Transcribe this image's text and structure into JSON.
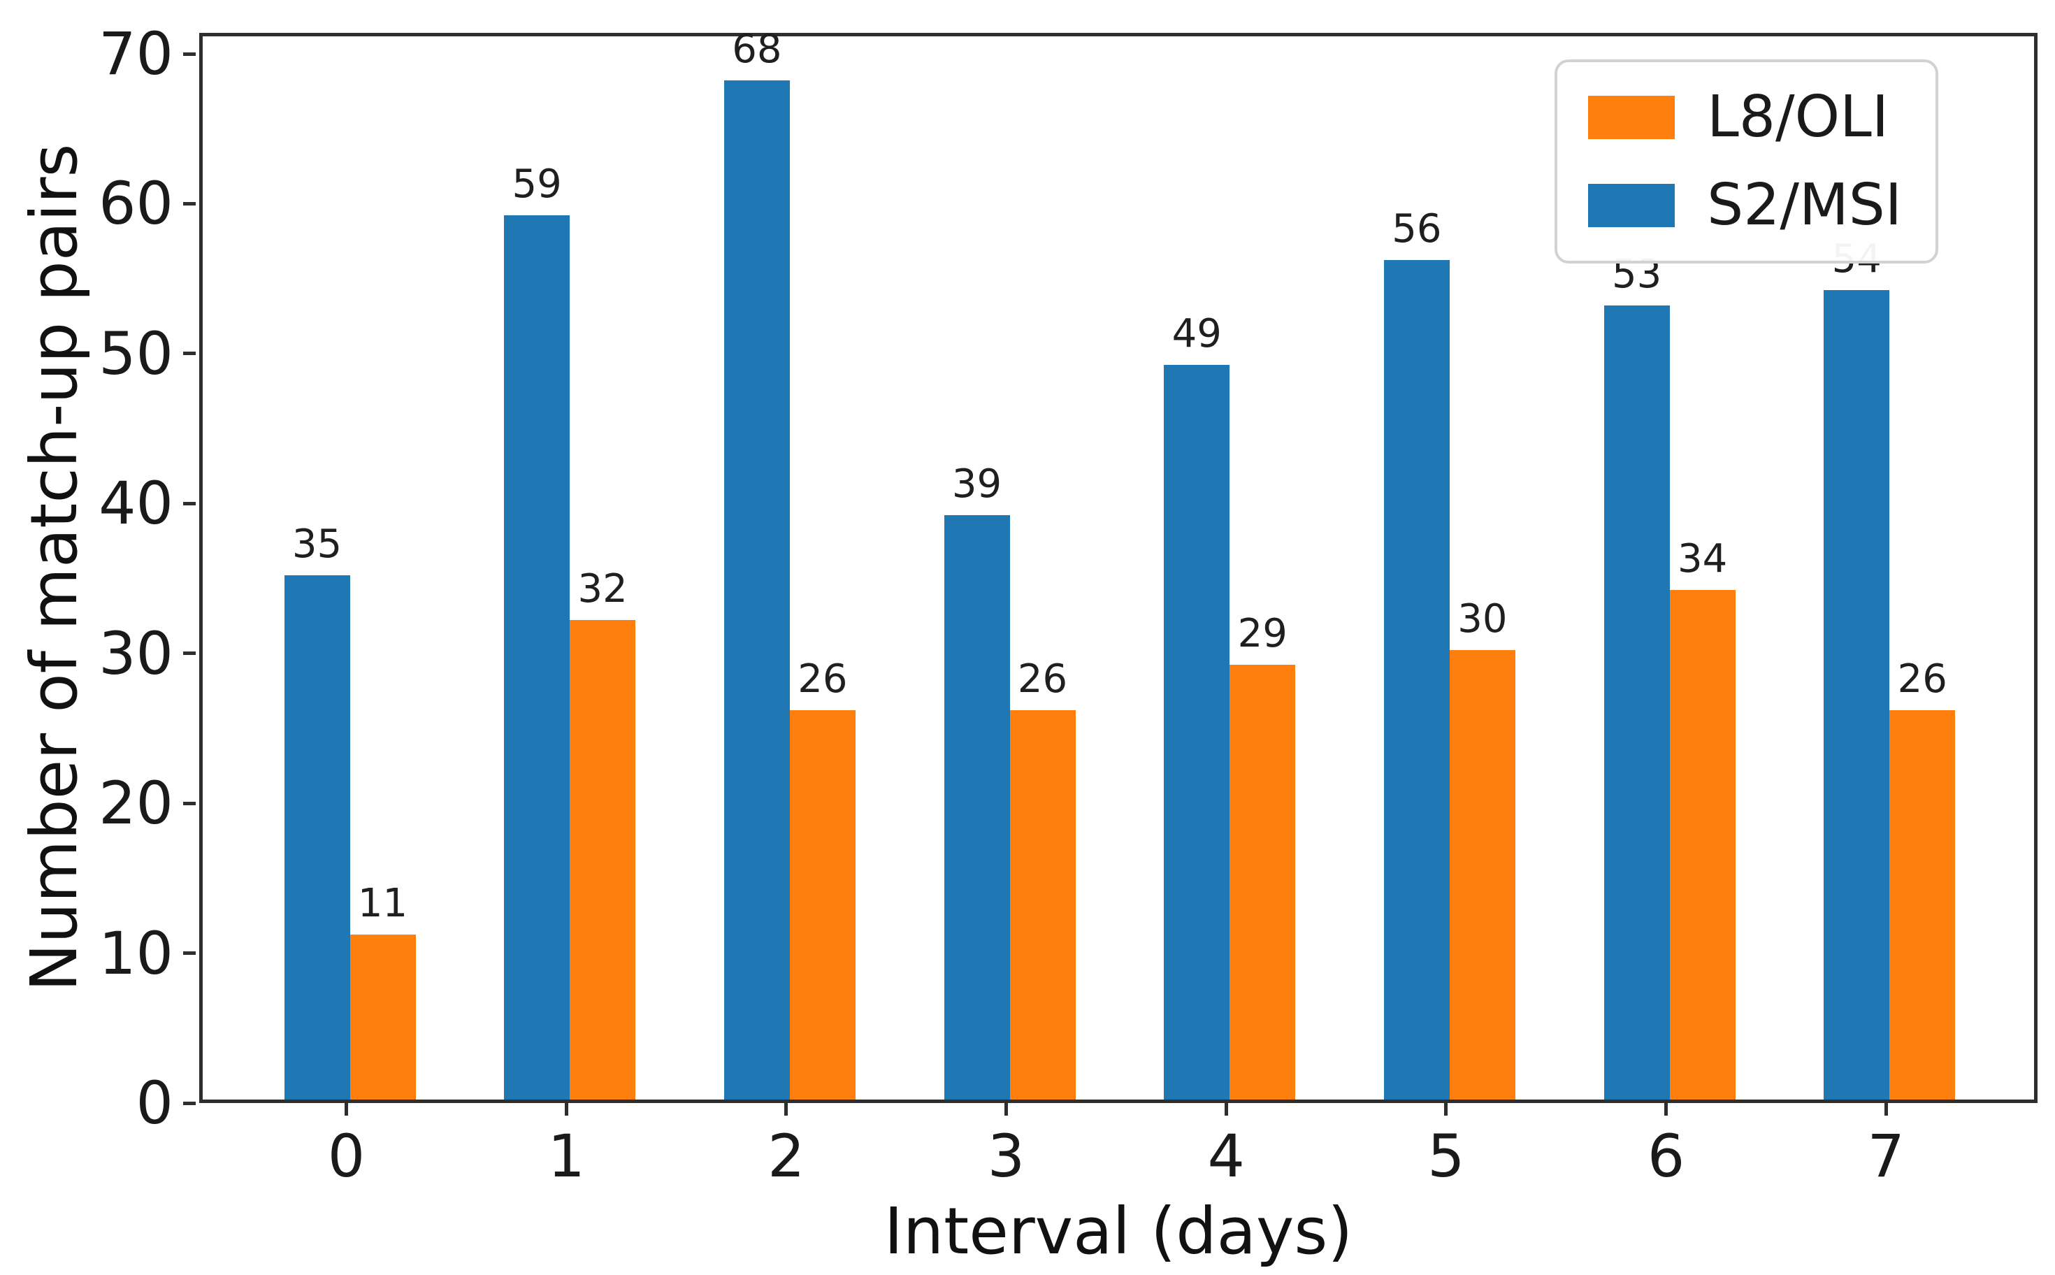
{
  "chart_data": {
    "type": "bar",
    "title": "",
    "xlabel": "Interval (days)",
    "ylabel": "Number of match-up pairs",
    "categories": [
      "0",
      "1",
      "2",
      "3",
      "4",
      "5",
      "6",
      "7"
    ],
    "series": [
      {
        "name": "S2/MSI",
        "color": "#1f77b4",
        "values": [
          35,
          59,
          68,
          39,
          49,
          56,
          53,
          54
        ]
      },
      {
        "name": "L8/OLI",
        "color": "#ff7f0e",
        "values": [
          11,
          32,
          26,
          26,
          29,
          30,
          34,
          26
        ]
      }
    ],
    "bar_value_labels": true,
    "yticks": [
      0,
      10,
      20,
      30,
      40,
      50,
      60,
      70
    ],
    "ylim": [
      0,
      70
    ],
    "ylim_display_max": 71.4,
    "grid": false,
    "legend": {
      "position": "upper-right",
      "entries": [
        "L8/OLI",
        "S2/MSI"
      ]
    }
  }
}
